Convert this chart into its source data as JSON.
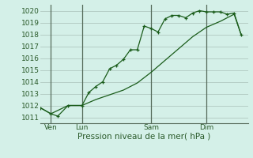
{
  "xlabel": "Pression niveau de la mer( hPa )",
  "bg_color": "#d4f0e8",
  "grid_color": "#b0c8c0",
  "line_color": "#1a5c1a",
  "vline_color": "#556b5a",
  "ylim": [
    1010.5,
    1020.5
  ],
  "xlim": [
    0,
    30
  ],
  "xtick_positions": [
    1.5,
    6,
    16,
    24
  ],
  "xtick_labels": [
    "Ven",
    "Lun",
    "Sam",
    "Dim"
  ],
  "ytick_positions": [
    1011,
    1012,
    1013,
    1014,
    1015,
    1016,
    1017,
    1018,
    1019,
    1020
  ],
  "series1_x": [
    0,
    1.5,
    2.5,
    4,
    6,
    7,
    8,
    9,
    10,
    11,
    12,
    13,
    14,
    15,
    16,
    17,
    18,
    19,
    20,
    21,
    22,
    23,
    24,
    25,
    26,
    27,
    28,
    29
  ],
  "series1_y": [
    1011.8,
    1011.3,
    1011.1,
    1012.0,
    1012.0,
    1013.1,
    1013.6,
    1014.0,
    1015.1,
    1015.4,
    1015.9,
    1016.7,
    1016.7,
    1018.7,
    1018.5,
    1018.2,
    1019.3,
    1019.6,
    1019.6,
    1019.4,
    1019.8,
    1020.0,
    1019.9,
    1019.9,
    1019.9,
    1019.7,
    1019.8,
    1018.0
  ],
  "series2_x": [
    0,
    1.5,
    4,
    6,
    8,
    10,
    12,
    14,
    16,
    18,
    20,
    22,
    24,
    26,
    28,
    29
  ],
  "series2_y": [
    1011.8,
    1011.3,
    1012.0,
    1012.0,
    1012.5,
    1012.9,
    1013.3,
    1013.9,
    1014.8,
    1015.8,
    1016.8,
    1017.8,
    1018.6,
    1019.1,
    1019.7,
    1018.0
  ],
  "vline_positions": [
    1.5,
    6,
    16,
    24
  ],
  "font_color": "#2a5a2a",
  "font_size_tick": 6.5,
  "font_size_label": 7.5
}
